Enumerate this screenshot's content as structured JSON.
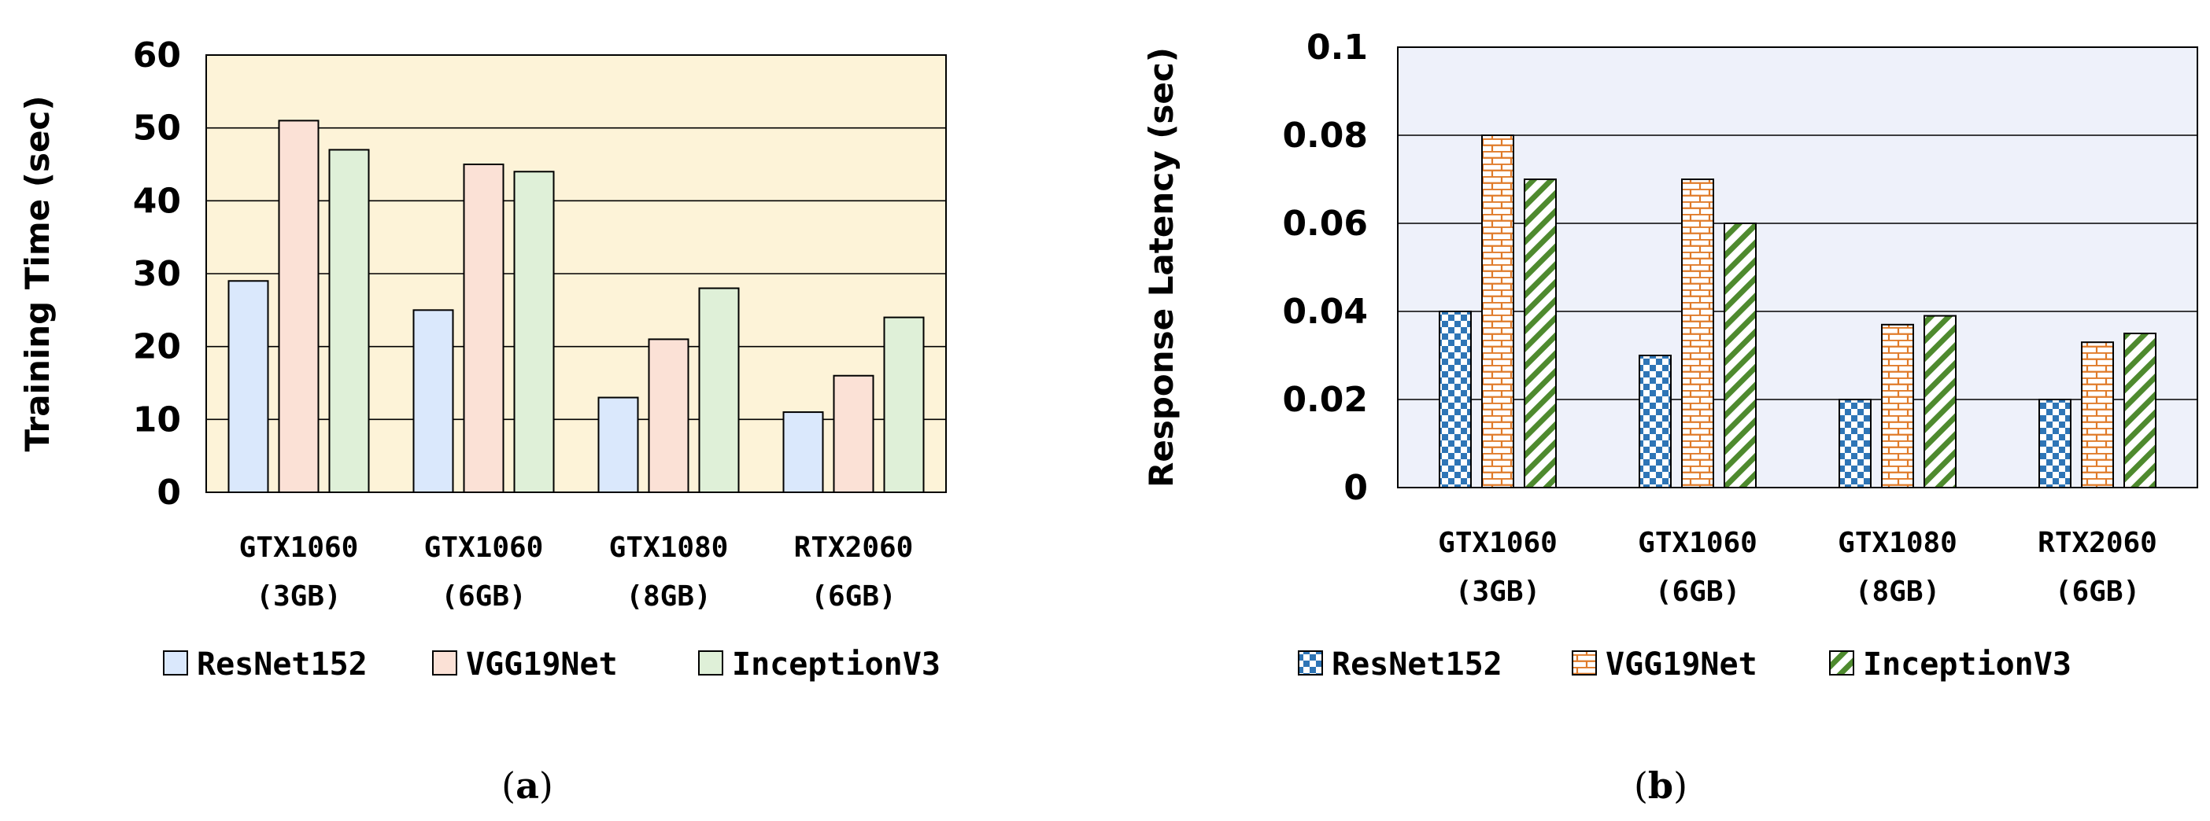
{
  "chart_data": [
    {
      "type": "bar",
      "caption_letter": "a",
      "ylabel": "Training Time (sec)",
      "ylim": [
        0,
        60
      ],
      "yticks": [
        0,
        10,
        20,
        30,
        40,
        50,
        60
      ],
      "grid": true,
      "categories": [
        [
          "GTX1060",
          "(3GB)"
        ],
        [
          "GTX1060",
          "(6GB)"
        ],
        [
          "GTX1080",
          "(8GB)"
        ],
        [
          "RTX2060",
          "(6GB)"
        ]
      ],
      "series": [
        {
          "name": "ResNet152",
          "values": [
            29,
            25,
            13,
            11
          ],
          "color": "#dae8fc"
        },
        {
          "name": "VGG19Net",
          "values": [
            51,
            45,
            21,
            16
          ],
          "color": "#fbe1d6"
        },
        {
          "name": "InceptionV3",
          "values": [
            47,
            44,
            28,
            24
          ],
          "color": "#dff0d8"
        }
      ],
      "plot_background": "#fdf3d8",
      "legend_position": "bottom"
    },
    {
      "type": "bar",
      "caption_letter": "b",
      "ylabel": "Response Latency (sec)",
      "ylim": [
        0,
        0.1
      ],
      "yticks": [
        "0",
        "0.02",
        "0.04",
        "0.06",
        "0.08",
        "0.1"
      ],
      "grid": true,
      "categories": [
        [
          "GTX1060",
          "(3GB)"
        ],
        [
          "GTX1060",
          "(6GB)"
        ],
        [
          "GTX1080",
          "(8GB)"
        ],
        [
          "RTX2060",
          "(6GB)"
        ]
      ],
      "series": [
        {
          "name": "ResNet152",
          "values": [
            0.04,
            0.03,
            0.02,
            0.02
          ],
          "color": "#2e75b6",
          "pattern": "checker"
        },
        {
          "name": "VGG19Net",
          "values": [
            0.08,
            0.07,
            0.037,
            0.033
          ],
          "color": "#e07b2a",
          "pattern": "brick"
        },
        {
          "name": "InceptionV3",
          "values": [
            0.07,
            0.06,
            0.039,
            0.035
          ],
          "color": "#4e8a2e",
          "pattern": "diagonal"
        }
      ],
      "plot_background": "#eef1fa",
      "legend_position": "bottom"
    }
  ]
}
